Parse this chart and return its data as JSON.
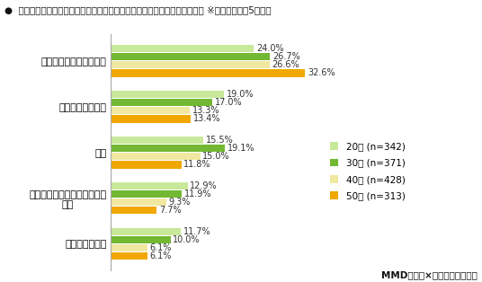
{
  "title": "●  新型コロナウイルスの影響によって在宅時間が増えたことから始めたこと ※年代別、上位5位抜粋",
  "categories": [
    "部屋の片づけ・模様替え",
    "自炊、お菓子作り",
    "運動",
    "副業、ギグワーク、ポイント\n活動",
    "学習、資格取得"
  ],
  "series_names": [
    "20代 (n=342)",
    "30代 (n=371)",
    "40代 (n=428)",
    "50代 (n=313)"
  ],
  "series_values": [
    [
      24.0,
      19.0,
      15.5,
      12.9,
      11.7
    ],
    [
      26.7,
      17.0,
      19.1,
      11.9,
      10.0
    ],
    [
      26.6,
      13.3,
      15.0,
      9.3,
      6.1
    ],
    [
      32.6,
      13.4,
      11.8,
      7.7,
      6.1
    ]
  ],
  "colors": [
    "#c8e89a",
    "#72b832",
    "#f0e8a0",
    "#f0a800"
  ],
  "credit": "MMD研究所×スマートアンサー",
  "xlim": [
    0,
    38
  ],
  "background_color": "#ffffff",
  "title_fontsize": 7.5,
  "label_fontsize": 7,
  "ytick_fontsize": 8,
  "legend_fontsize": 7.5
}
